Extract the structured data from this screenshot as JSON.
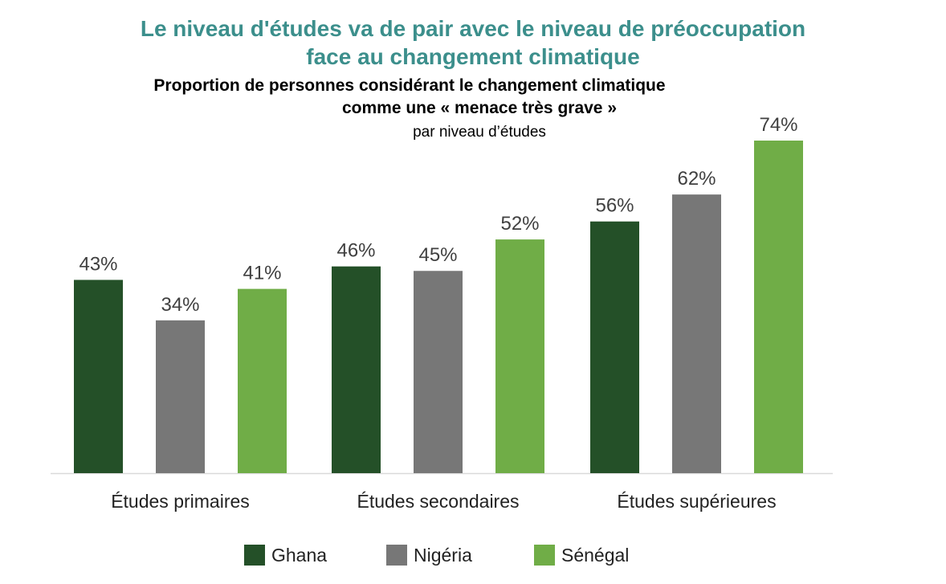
{
  "title_line1": "Le niveau d'études va de pair avec le niveau de préoccupation",
  "title_line2": "face au changement climatique",
  "subtitle_line1": "Proportion de personnes considérant le changement climatique",
  "subtitle_line2": "comme une « menace très grave »",
  "subtitle_line3": "par niveau d’études",
  "colors": {
    "Ghana": "#245028",
    "Nigéria": "#777777",
    "Sénégal": "#70ad47"
  },
  "chart_data": {
    "type": "bar",
    "categories": [
      "Études primaires",
      "Études secondaires",
      "Études supérieures"
    ],
    "series": [
      {
        "name": "Ghana",
        "values": [
          43,
          46,
          56
        ],
        "labels": [
          "43%",
          "46%",
          "56%"
        ]
      },
      {
        "name": "Nigéria",
        "values": [
          34,
          45,
          62
        ],
        "labels": [
          "34%",
          "45%",
          "62%"
        ]
      },
      {
        "name": "Sénégal",
        "values": [
          41,
          52,
          74
        ],
        "labels": [
          "41%",
          "52%",
          "74%"
        ]
      }
    ],
    "ylim": [
      0,
      74
    ],
    "grid": false,
    "legend_position": "bottom"
  }
}
